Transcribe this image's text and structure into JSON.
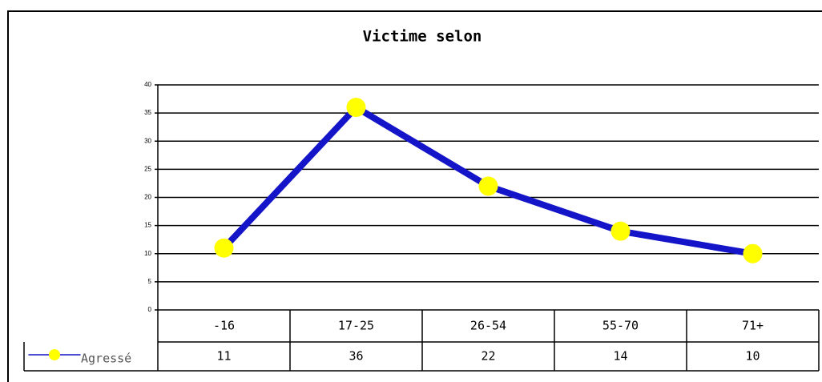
{
  "chart_data": {
    "type": "line",
    "title": "Victime selon",
    "categories": [
      "-16",
      "17-25",
      "26-54",
      "55-70",
      "71+"
    ],
    "series": [
      {
        "name": "Agressé",
        "color": "#1414c8",
        "marker_color": "#ffff00",
        "values": [
          11,
          36,
          22,
          14,
          10
        ]
      }
    ],
    "ylim": [
      0,
      40
    ],
    "yticks": [
      0,
      5,
      10,
      15,
      20,
      25,
      30,
      35,
      40
    ],
    "grid": true,
    "data_table": true
  }
}
